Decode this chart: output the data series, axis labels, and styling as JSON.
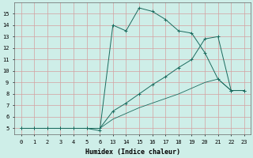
{
  "xlabel": "Humidex (Indice chaleur)",
  "background_color": "#ceeee8",
  "grid_color": "#d4a0a0",
  "line_color": "#1a6b5e",
  "x_labels": [
    "0",
    "1",
    "2",
    "3",
    "4",
    "5",
    "6",
    "13",
    "14",
    "15",
    "16",
    "17",
    "18",
    "19",
    "20",
    "21",
    "22",
    "23"
  ],
  "line1_y": [
    5.0,
    5.0,
    5.0,
    5.0,
    5.0,
    5.0,
    4.8,
    14.0,
    13.5,
    15.5,
    15.2,
    14.5,
    13.5,
    13.3,
    11.6,
    9.3,
    8.3,
    8.3
  ],
  "line2_y": [
    5.0,
    5.0,
    5.0,
    5.0,
    5.0,
    5.0,
    5.0,
    6.5,
    7.2,
    8.0,
    8.8,
    9.5,
    10.3,
    11.0,
    12.8,
    13.0,
    8.3,
    8.3
  ],
  "line3_y": [
    5.0,
    5.0,
    5.0,
    5.0,
    5.0,
    5.0,
    5.0,
    5.8,
    6.3,
    6.8,
    7.2,
    7.6,
    8.0,
    8.5,
    9.0,
    9.3,
    8.3,
    8.3
  ],
  "ylim": [
    4.5,
    16
  ],
  "yticks": [
    5,
    6,
    7,
    8,
    9,
    10,
    11,
    12,
    13,
    14,
    15
  ],
  "figsize": [
    3.2,
    2.0
  ],
  "dpi": 100
}
